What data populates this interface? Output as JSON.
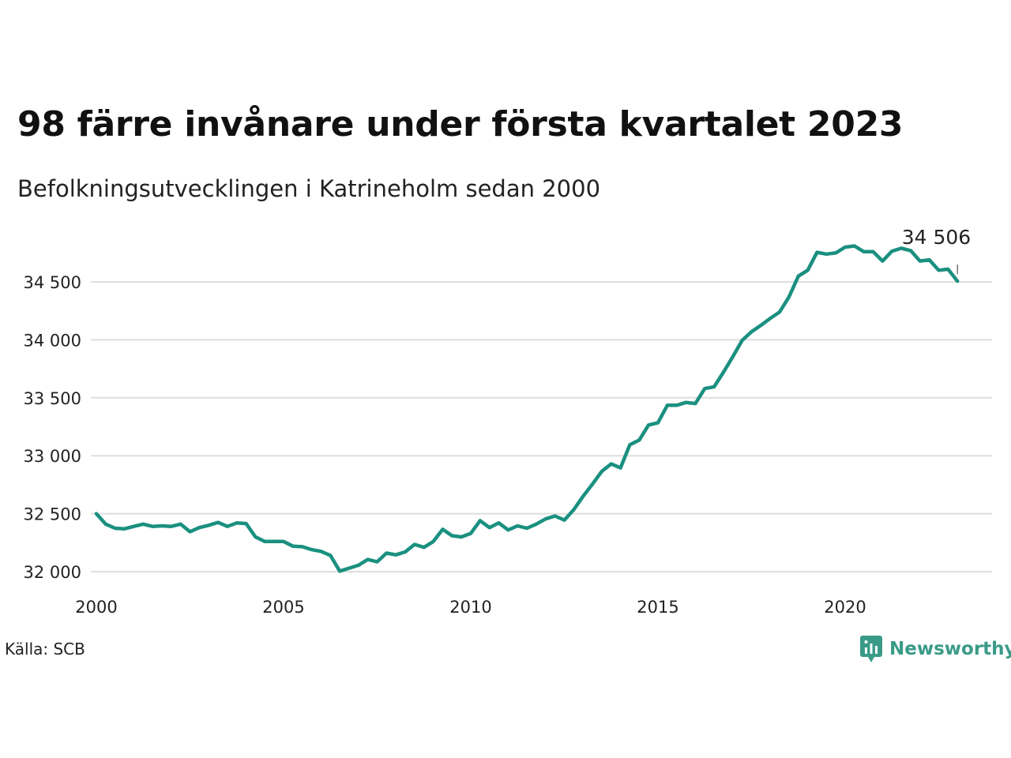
{
  "chart_data": {
    "type": "line",
    "title": "98 färre invånare under första kvartalet 2023",
    "subtitle": "Befolkningsutvecklingen i Katrineholm sedan 2000",
    "xlabel": "",
    "ylabel": "",
    "x_ticks": [
      2000,
      2005,
      2010,
      2015,
      2020
    ],
    "x_tick_labels": [
      "2000",
      "2005",
      "2010",
      "2015",
      "2020"
    ],
    "y_ticks": [
      32000,
      32500,
      33000,
      33500,
      34000,
      34500
    ],
    "y_tick_labels": [
      "32 000",
      "32 500",
      "33 000",
      "33 500",
      "34 000",
      "34 500"
    ],
    "xlim": [
      2000,
      2023.75
    ],
    "ylim": [
      31940,
      34800
    ],
    "grid": true,
    "line_color": "#1a9080",
    "end_label": "34 506",
    "series": [
      {
        "x": [
          "2000-Q1",
          "2000-Q2",
          "2000-Q3",
          "2000-Q4",
          "2001-Q1",
          "2001-Q2",
          "2001-Q3",
          "2001-Q4",
          "2002-Q1",
          "2002-Q2",
          "2002-Q3",
          "2002-Q4",
          "2003-Q1",
          "2003-Q2",
          "2003-Q3",
          "2003-Q4",
          "2004-Q1",
          "2004-Q2",
          "2004-Q3",
          "2004-Q4",
          "2005-Q1",
          "2005-Q2",
          "2005-Q3",
          "2005-Q4",
          "2006-Q1",
          "2006-Q2",
          "2006-Q3",
          "2006-Q4",
          "2007-Q1",
          "2007-Q2",
          "2007-Q3",
          "2007-Q4",
          "2008-Q1",
          "2008-Q2",
          "2008-Q3",
          "2008-Q4",
          "2009-Q1",
          "2009-Q2",
          "2009-Q3",
          "2009-Q4",
          "2010-Q1",
          "2010-Q2",
          "2010-Q3",
          "2010-Q4",
          "2011-Q1",
          "2011-Q2",
          "2011-Q3",
          "2011-Q4",
          "2012-Q1",
          "2012-Q2",
          "2012-Q3",
          "2012-Q4",
          "2013-Q1",
          "2013-Q2",
          "2013-Q3",
          "2013-Q4",
          "2014-Q1",
          "2014-Q2",
          "2014-Q3",
          "2014-Q4",
          "2015-Q1",
          "2015-Q2",
          "2015-Q3",
          "2015-Q4",
          "2016-Q1",
          "2016-Q2",
          "2016-Q3",
          "2016-Q4",
          "2017-Q1",
          "2017-Q2",
          "2017-Q3",
          "2017-Q4",
          "2018-Q1",
          "2018-Q2",
          "2018-Q3",
          "2018-Q4",
          "2019-Q1",
          "2019-Q2",
          "2019-Q3",
          "2019-Q4",
          "2020-Q1",
          "2020-Q2",
          "2020-Q3",
          "2020-Q4",
          "2021-Q1",
          "2021-Q2",
          "2021-Q3",
          "2021-Q4",
          "2022-Q1",
          "2022-Q2",
          "2022-Q3",
          "2022-Q4",
          "2023-Q1"
        ],
        "values": [
          32500,
          32410,
          32375,
          32370,
          32390,
          32410,
          32390,
          32395,
          32390,
          32410,
          32345,
          32380,
          32400,
          32425,
          32390,
          32420,
          32415,
          32300,
          32260,
          32260,
          32260,
          32220,
          32215,
          32190,
          32175,
          32140,
          32005,
          32030,
          32055,
          32105,
          32085,
          32160,
          32145,
          32170,
          32235,
          32210,
          32260,
          32365,
          32310,
          32300,
          32330,
          32440,
          32380,
          32420,
          32360,
          32395,
          32375,
          32410,
          32455,
          32480,
          32445,
          32535,
          32650,
          32755,
          32865,
          32930,
          32895,
          33095,
          33135,
          33265,
          33285,
          33435,
          33435,
          33460,
          33450,
          33580,
          33595,
          33720,
          33855,
          33995,
          34070,
          34125,
          34185,
          34240,
          34370,
          34550,
          34600,
          34755,
          34740,
          34750,
          34800,
          34810,
          34760,
          34760,
          34680,
          34765,
          34790,
          34770,
          34680,
          34690,
          34600,
          34610,
          34506
        ]
      }
    ],
    "source": "Källa: SCB",
    "brand": "Newsworthy"
  }
}
